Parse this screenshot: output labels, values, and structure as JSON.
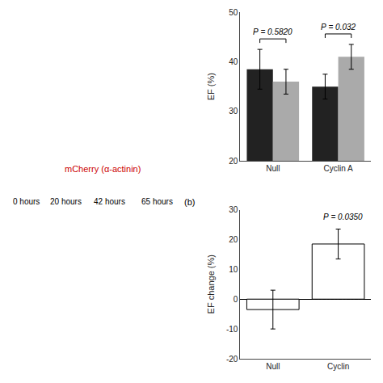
{
  "chart_data": [
    {
      "type": "bar",
      "categories": [
        "Null",
        "Cyclin A"
      ],
      "series": [
        {
          "color": "#222222",
          "values": [
            38.5,
            35.0
          ],
          "errors": [
            4.0,
            2.5
          ]
        },
        {
          "color": "#aaaaaa",
          "values": [
            36.0,
            41.0
          ],
          "errors": [
            2.5,
            2.5
          ]
        }
      ],
      "ylabel": "EF (%)",
      "ylim": [
        20,
        50
      ],
      "yticks": [
        20,
        30,
        40,
        50
      ],
      "grid": false,
      "annotations": [
        {
          "text": "P = 0.5820",
          "category": "Null"
        },
        {
          "text": "P = 0.032",
          "category": "Cyclin A"
        }
      ]
    },
    {
      "type": "bar",
      "categories": [
        "Null",
        "Cyclin"
      ],
      "values": [
        -3.5,
        18.5
      ],
      "errors": [
        6.5,
        5.0
      ],
      "colors": [
        "#ffffff",
        "#ffffff"
      ],
      "ylabel": "EF change (%)",
      "ylim": [
        -20,
        30
      ],
      "yticks": [
        -20,
        -10,
        0,
        10,
        20,
        30
      ],
      "grid": false,
      "annotations": [
        {
          "text": "P = 0.0350"
        }
      ]
    }
  ],
  "annotations": [
    {
      "text": "0 hours"
    },
    {
      "text": "20 hours"
    },
    {
      "text": "42 hours"
    },
    {
      "text": "65 hours"
    },
    {
      "text": "(b)"
    },
    {
      "text": "mCherry (α-actinin)",
      "color": "#cc0000"
    }
  ]
}
